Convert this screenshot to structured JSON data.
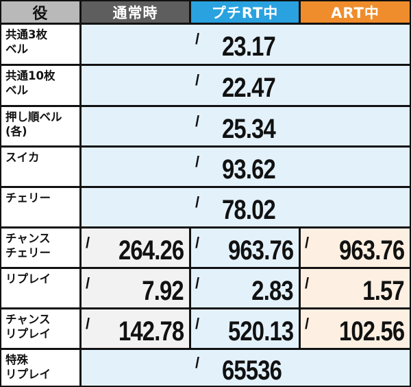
{
  "header": {
    "role": "役",
    "normal": "通常時",
    "petit_rt": "プチRT中",
    "art": "ART中"
  },
  "rows": [
    {
      "label": "共通3枚\nベル",
      "merged": true,
      "slash": "/",
      "value": "23.17"
    },
    {
      "label": "共通10枚\nベル",
      "merged": true,
      "slash": "/",
      "value": "22.47"
    },
    {
      "label": "押し順ベル\n(各)",
      "merged": true,
      "slash": "/",
      "value": "25.34"
    },
    {
      "label": "スイカ",
      "merged": true,
      "slash": "/",
      "value": "93.62"
    },
    {
      "label": "チェリー",
      "merged": true,
      "slash": "/",
      "value": "78.02"
    },
    {
      "label": "チャンス\nチェリー",
      "merged": false,
      "slash": "/",
      "normal": "264.26",
      "petit": "963.76",
      "art": "963.76"
    },
    {
      "label": "リプレイ",
      "merged": false,
      "slash": "/",
      "normal": "7.92",
      "petit": "2.83",
      "art": "1.57"
    },
    {
      "label": "チャンス\nリプレイ",
      "merged": false,
      "slash": "/",
      "normal": "142.78",
      "petit": "520.13",
      "art": "102.56"
    },
    {
      "label": "特殊\nリプレイ",
      "merged": true,
      "slash": "/",
      "value": "65536"
    }
  ],
  "colors": {
    "header_role": "#b9b9b9",
    "header_normal": "#5e5e5e",
    "header_petit_rt": "#2aa2df",
    "header_art": "#ef8d2c",
    "value_blue": "#e3f1fb",
    "value_gray": "#f2f2f2",
    "value_orange": "#fdf0e2",
    "grid": "#111111"
  }
}
